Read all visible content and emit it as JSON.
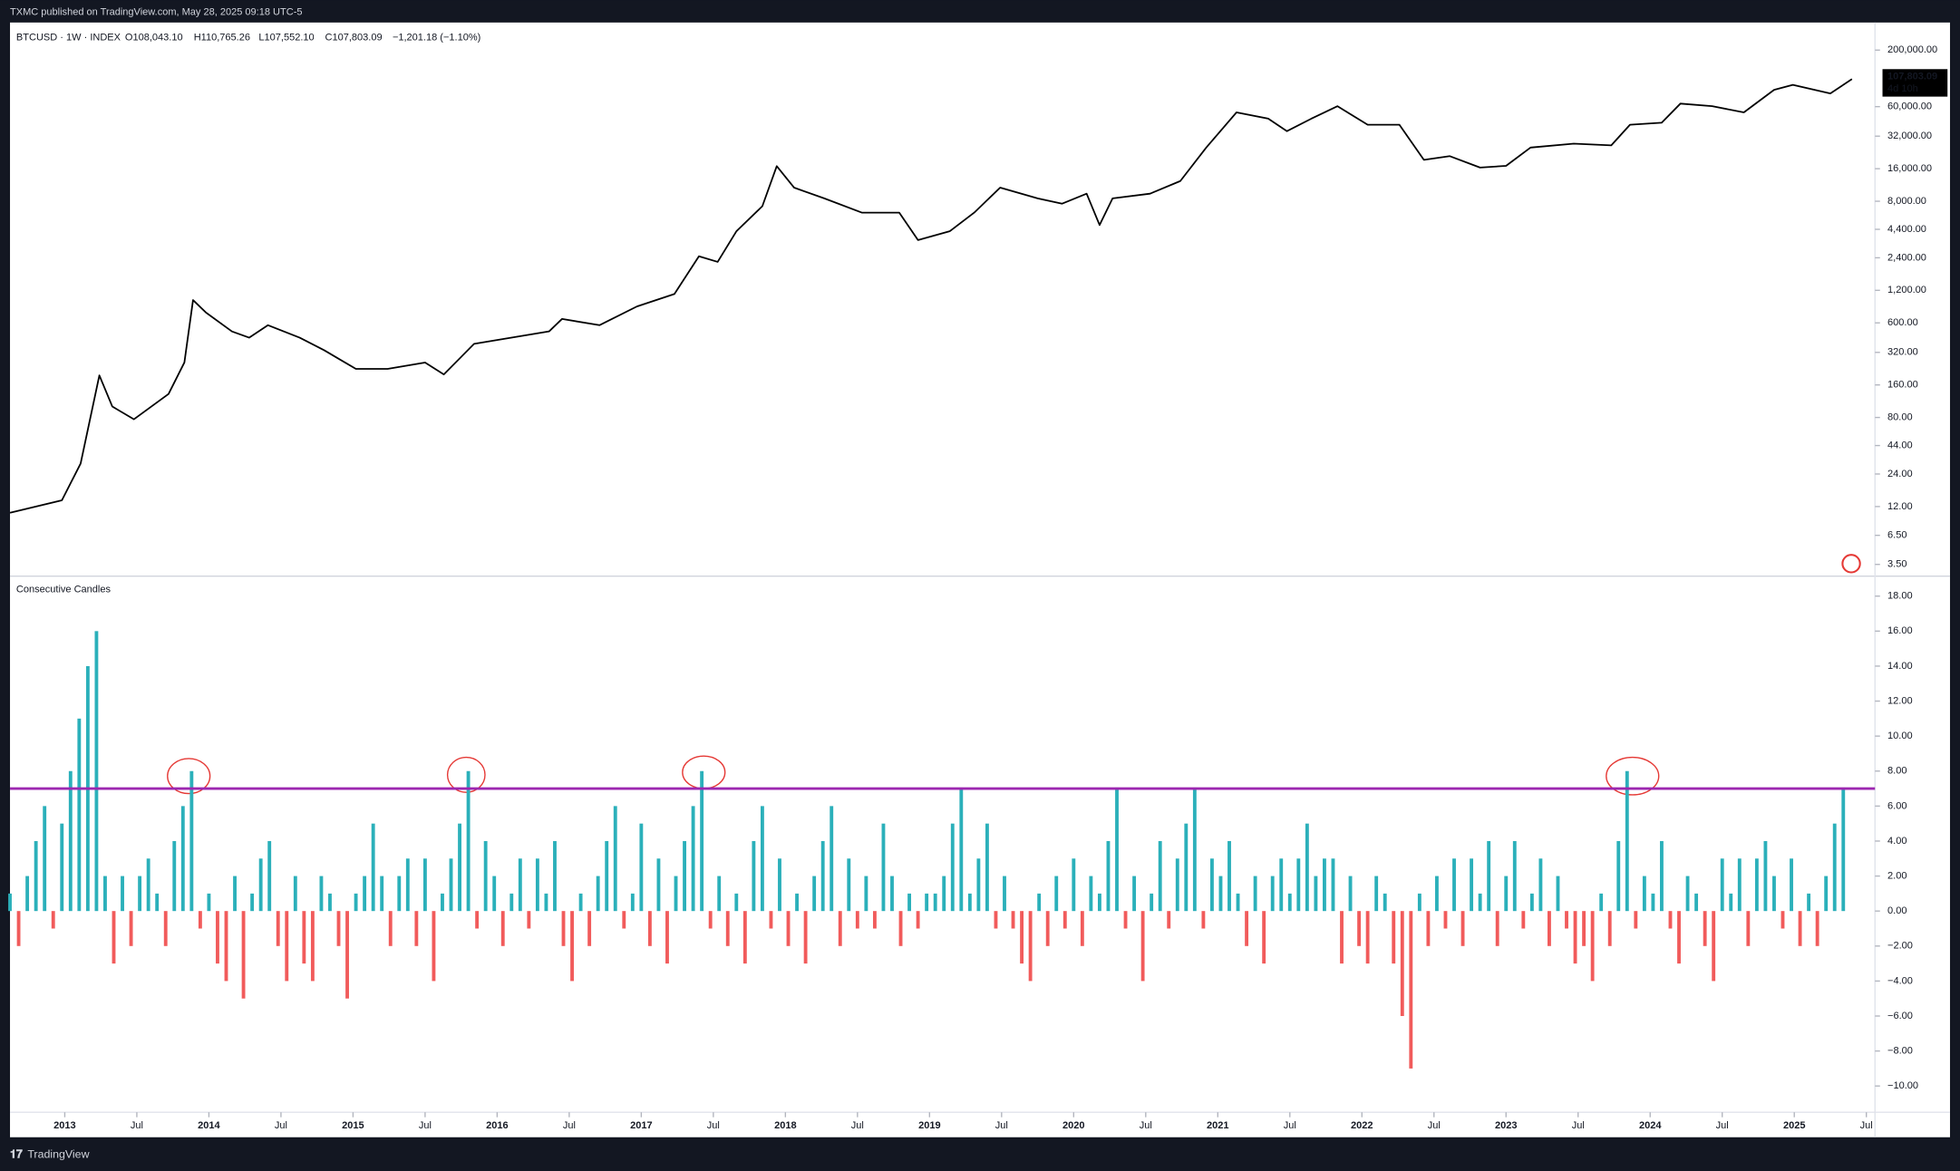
{
  "header": {
    "published": "TXMC published on TradingView.com, May 28, 2025 09:18 UTC-5"
  },
  "chart_data": [
    {
      "type": "line",
      "color": "#000000",
      "log_scale": true,
      "legend": {
        "symbol": "BTCUSD · 1W · INDEX",
        "open": "O108,043.10",
        "high": "H110,765.26",
        "low": "L107,552.10",
        "close": "C107,803.09",
        "change": "−1,201.18 (−1.10%)"
      },
      "last_price_label": "107,803.09",
      "countdown": "4d 10h",
      "x": [
        2012.62,
        2012.98,
        2013.11,
        2013.24,
        2013.33,
        2013.48,
        2013.72,
        2013.83,
        2013.89,
        2013.98,
        2014.16,
        2014.28,
        2014.41,
        2014.63,
        2014.8,
        2015.02,
        2015.24,
        2015.5,
        2015.63,
        2015.84,
        2016.1,
        2016.36,
        2016.45,
        2016.71,
        2016.97,
        2017.23,
        2017.4,
        2017.53,
        2017.66,
        2017.84,
        2017.94,
        2018.06,
        2018.27,
        2018.53,
        2018.79,
        2018.92,
        2019.14,
        2019.31,
        2019.49,
        2019.75,
        2019.92,
        2020.09,
        2020.18,
        2020.27,
        2020.53,
        2020.74,
        2020.92,
        2021.13,
        2021.35,
        2021.48,
        2021.65,
        2021.83,
        2022.04,
        2022.26,
        2022.43,
        2022.61,
        2022.82,
        2023.0,
        2023.17,
        2023.47,
        2023.73,
        2023.86,
        2024.08,
        2024.21,
        2024.43,
        2024.65,
        2024.86,
        2024.99,
        2025.25,
        2025.4
      ],
      "values": [
        10.5,
        13.7,
        30,
        196,
        101,
        77,
        132,
        258,
        975,
        747,
        500,
        438,
        571,
        438,
        335,
        225,
        225,
        258,
        200,
        384,
        438,
        500,
        652,
        571,
        851,
        1110,
        2477,
        2200,
        4220,
        7200,
        16900,
        10700,
        8500,
        6280,
        6280,
        3500,
        4220,
        6280,
        10700,
        8500,
        7600,
        9400,
        4820,
        8500,
        9400,
        12300,
        25100,
        53100,
        46500,
        35600,
        46500,
        60600,
        40800,
        40800,
        19300,
        20900,
        16400,
        17000,
        25100,
        27300,
        26300,
        40800,
        42600,
        64000,
        60600,
        53100,
        85800,
        95400,
        79400,
        107803.09
      ],
      "xlim": [
        2012.62,
        2025.56
      ],
      "ylim": [
        2.8,
        360000
      ],
      "yticks": [
        {
          "value": 200000,
          "label": "200,000.00"
        },
        {
          "value": 60000,
          "label": "60,000.00"
        },
        {
          "value": 32000,
          "label": "32,000.00"
        },
        {
          "value": 16000,
          "label": "16,000.00"
        },
        {
          "value": 8000,
          "label": "8,000.00"
        },
        {
          "value": 4400,
          "label": "4,400.00"
        },
        {
          "value": 2400,
          "label": "2,400.00"
        },
        {
          "value": 1200,
          "label": "1,200.00"
        },
        {
          "value": 600,
          "label": "600.00"
        },
        {
          "value": 320,
          "label": "320.00"
        },
        {
          "value": 160,
          "label": "160.00"
        },
        {
          "value": 80,
          "label": "80.00"
        },
        {
          "value": 44,
          "label": "44.00"
        },
        {
          "value": 24,
          "label": "24.00"
        },
        {
          "value": 12,
          "label": "12.00"
        },
        {
          "value": 6.5,
          "label": "6.50"
        },
        {
          "value": 3.5,
          "label": "3.50"
        }
      ]
    },
    {
      "type": "bar",
      "title": "Consecutive Candles",
      "color_up": "#2bb0ba",
      "color_down": "#f15b5b",
      "hline": {
        "value": 7,
        "color": "#9c27b0"
      },
      "x": [
        2012.62,
        2012.68,
        2012.74,
        2012.8,
        2012.86,
        2012.92,
        2012.98,
        2013.04,
        2013.1,
        2013.16,
        2013.22,
        2013.28,
        2013.34,
        2013.4,
        2013.46,
        2013.52,
        2013.58,
        2013.64,
        2013.7,
        2013.76,
        2013.82,
        2013.88,
        2013.94,
        2014,
        2014.06,
        2014.12,
        2014.18,
        2014.24,
        2014.3,
        2014.36,
        2014.42,
        2014.48,
        2014.54,
        2014.6,
        2014.66,
        2014.72,
        2014.78,
        2014.84,
        2014.9,
        2014.96,
        2015.02,
        2015.08,
        2015.14,
        2015.2,
        2015.26,
        2015.32,
        2015.38,
        2015.44,
        2015.5,
        2015.56,
        2015.62,
        2015.68,
        2015.74,
        2015.8,
        2015.86,
        2015.92,
        2015.98,
        2016.04,
        2016.1,
        2016.16,
        2016.22,
        2016.28,
        2016.34,
        2016.4,
        2016.46,
        2016.52,
        2016.58,
        2016.64,
        2016.7,
        2016.76,
        2016.82,
        2016.88,
        2016.94,
        2017,
        2017.06,
        2017.12,
        2017.18,
        2017.24,
        2017.3,
        2017.36,
        2017.42,
        2017.48,
        2017.54,
        2017.6,
        2017.66,
        2017.72,
        2017.78,
        2017.84,
        2017.9,
        2017.96,
        2018.02,
        2018.08,
        2018.14,
        2018.2,
        2018.26,
        2018.32,
        2018.38,
        2018.44,
        2018.5,
        2018.56,
        2018.62,
        2018.68,
        2018.74,
        2018.8,
        2018.86,
        2018.92,
        2018.98,
        2019.04,
        2019.1,
        2019.16,
        2019.22,
        2019.28,
        2019.34,
        2019.4,
        2019.46,
        2019.52,
        2019.58,
        2019.64,
        2019.7,
        2019.76,
        2019.82,
        2019.88,
        2019.94,
        2020,
        2020.06,
        2020.12,
        2020.18,
        2020.24,
        2020.3,
        2020.36,
        2020.42,
        2020.48,
        2020.54,
        2020.6,
        2020.66,
        2020.72,
        2020.78,
        2020.84,
        2020.9,
        2020.96,
        2021.02,
        2021.08,
        2021.14,
        2021.2,
        2021.26,
        2021.32,
        2021.38,
        2021.44,
        2021.5,
        2021.56,
        2021.62,
        2021.68,
        2021.74,
        2021.8,
        2021.86,
        2021.92,
        2021.98,
        2022.04,
        2022.1,
        2022.16,
        2022.22,
        2022.28,
        2022.34,
        2022.4,
        2022.46,
        2022.52,
        2022.58,
        2022.64,
        2022.7,
        2022.76,
        2022.82,
        2022.88,
        2022.94,
        2023,
        2023.06,
        2023.12,
        2023.18,
        2023.24,
        2023.3,
        2023.36,
        2023.42,
        2023.48,
        2023.54,
        2023.6,
        2023.66,
        2023.72,
        2023.78,
        2023.84,
        2023.9,
        2023.96,
        2024.02,
        2024.08,
        2024.14,
        2024.2,
        2024.26,
        2024.32,
        2024.38,
        2024.44,
        2024.5,
        2024.56,
        2024.62,
        2024.68,
        2024.74,
        2024.8,
        2024.86,
        2024.92,
        2024.98,
        2025.04,
        2025.1,
        2025.16,
        2025.22,
        2025.28,
        2025.34
      ],
      "values": [
        1,
        -2,
        2,
        4,
        6,
        -1,
        5,
        8,
        11,
        14,
        16,
        2,
        -3,
        2,
        -2,
        2,
        3,
        1,
        -2,
        4,
        6,
        8,
        -1,
        1,
        -3,
        -4,
        2,
        -5,
        1,
        3,
        4,
        -2,
        -4,
        2,
        -3,
        -4,
        2,
        1,
        -2,
        -5,
        1,
        2,
        5,
        2,
        -2,
        2,
        3,
        -2,
        3,
        -4,
        1,
        3,
        5,
        8,
        -1,
        4,
        2,
        -2,
        1,
        3,
        -1,
        3,
        1,
        4,
        -2,
        -4,
        1,
        -2,
        2,
        4,
        6,
        -1,
        1,
        5,
        -2,
        3,
        -3,
        2,
        4,
        6,
        8,
        -1,
        2,
        -2,
        1,
        -3,
        4,
        6,
        -1,
        3,
        -2,
        1,
        -3,
        2,
        4,
        6,
        -2,
        3,
        -1,
        2,
        -1,
        5,
        2,
        -2,
        1,
        -1,
        1,
        1,
        2,
        5,
        7,
        1,
        3,
        5,
        -1,
        2,
        -1,
        -3,
        -4,
        1,
        -2,
        2,
        -1,
        3,
        -2,
        2,
        1,
        4,
        7,
        -1,
        2,
        -4,
        1,
        4,
        -1,
        3,
        5,
        7,
        -1,
        3,
        2,
        4,
        1,
        -2,
        2,
        -3,
        2,
        3,
        1,
        3,
        5,
        2,
        3,
        3,
        -3,
        2,
        -2,
        -3,
        2,
        1,
        -3,
        -6,
        -9,
        1,
        -2,
        2,
        -1,
        3,
        -2,
        3,
        1,
        4,
        -2,
        2,
        4,
        -1,
        1,
        3,
        -2,
        2,
        -1,
        -3,
        -2,
        -4,
        1,
        -2,
        4,
        8,
        -1,
        2,
        1,
        4,
        -1,
        -3,
        2,
        1,
        -2,
        -4,
        3,
        1,
        3,
        -2,
        3,
        4,
        2,
        -1,
        3,
        -2,
        1,
        -2,
        2,
        5,
        7
      ],
      "xlim": [
        2012.62,
        2025.56
      ],
      "ylim": [
        -11.5,
        19
      ],
      "yticks": [
        {
          "value": 18,
          "label": "18.00"
        },
        {
          "value": 16,
          "label": "16.00"
        },
        {
          "value": 14,
          "label": "14.00"
        },
        {
          "value": 12,
          "label": "12.00"
        },
        {
          "value": 10,
          "label": "10.00"
        },
        {
          "value": 8,
          "label": "8.00"
        },
        {
          "value": 6,
          "label": "6.00"
        },
        {
          "value": 4,
          "label": "4.00"
        },
        {
          "value": 2,
          "label": "2.00"
        },
        {
          "value": 0,
          "label": "0.00"
        },
        {
          "value": -2,
          "label": "−2.00"
        },
        {
          "value": -4,
          "label": "−4.00"
        },
        {
          "value": -6,
          "label": "−6.00"
        },
        {
          "value": -8,
          "label": "−8.00"
        },
        {
          "value": -10,
          "label": "−10.00"
        }
      ],
      "xticks": [
        2013,
        {
          "value": 2013.5,
          "label": "Jul"
        },
        2014,
        {
          "value": 2014.5,
          "label": "Jul"
        },
        2015,
        {
          "value": 2015.5,
          "label": "Jul"
        },
        2016,
        {
          "value": 2016.5,
          "label": "Jul"
        },
        2017,
        {
          "value": 2017.5,
          "label": "Jul"
        },
        2018,
        {
          "value": 2018.5,
          "label": "Jul"
        },
        2019,
        {
          "value": 2019.5,
          "label": "Jul"
        },
        2020,
        {
          "value": 2020.5,
          "label": "Jul"
        },
        2021,
        {
          "value": 2021.5,
          "label": "Jul"
        },
        2022,
        {
          "value": 2022.5,
          "label": "Jul"
        },
        2023,
        {
          "value": 2023.5,
          "label": "Jul"
        },
        2024,
        {
          "value": 2024.5,
          "label": "Jul"
        },
        2025,
        {
          "value": 2025.5,
          "label": "Jul"
        }
      ]
    }
  ],
  "footer": {
    "brand": "TradingView"
  }
}
